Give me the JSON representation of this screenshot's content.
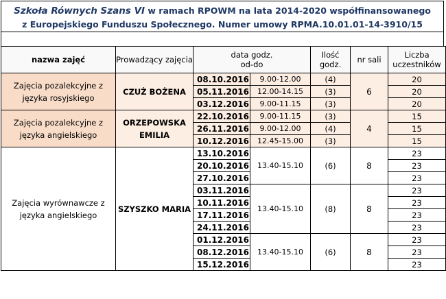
{
  "header": {
    "line1_italic": "Szkoła Równych Szans VI",
    "line1_rest": " w ramach RPOWM na lata 2014-2020 współfinansowanego",
    "line2": "z Europejskiego Funduszu Społecznego. Numer umowy RPMA.10.01.01-14-3910/15"
  },
  "columns": {
    "name": "nazwa zajęć",
    "leader": "Prowadzący zajęcia",
    "date": "data godz. od-do",
    "hours": "Ilość godz.",
    "room": "nr sali",
    "participants": "Liczba uczestników"
  },
  "groups": [
    {
      "name": "Zajęcia pozalekcyjne z języka rosyjskiego",
      "leader": "CZUŻ BOŻENA",
      "room": "6",
      "sessions": [
        {
          "date": "08.10.2016",
          "time": "9.00-12.00",
          "hours": "(4)",
          "participants": "20"
        },
        {
          "date": "05.11.2016",
          "time": "12.00-14.15",
          "hours": "(3)",
          "participants": "20"
        },
        {
          "date": "03.12.2016",
          "time": "9.00-11.15",
          "hours": "(3)",
          "participants": "20"
        }
      ]
    },
    {
      "name": "Zajęcia pozalekcyjne z języka angielskiego",
      "leader": "ORZEPOWSKA EMILIA",
      "room": "4",
      "sessions": [
        {
          "date": "22.10.2016",
          "time": "9.00-11.15",
          "hours": "(3)",
          "participants": "15"
        },
        {
          "date": "26.11.2016",
          "time": "9.00-12.00",
          "hours": "(4)",
          "participants": "15"
        },
        {
          "date": "10.12.2016",
          "time": "12.45-15.00",
          "hours": "(3)",
          "participants": "15"
        }
      ]
    },
    {
      "name": "Zajęcia wyrównawcze z języka angielskiego",
      "leader": "SZYSZKO MARIA",
      "blocks": [
        {
          "dates": [
            "13.10.2016",
            "20.10.2016",
            "27.10.2016"
          ],
          "time": "13.40-15.10",
          "hours": "(6)",
          "room": "8",
          "participants": [
            "23",
            "23",
            "23"
          ]
        },
        {
          "dates": [
            "03.11.2016",
            "10.11.2016",
            "17.11.2016",
            "24.11.2016"
          ],
          "time": "13.40-15.10",
          "hours": "(8)",
          "room": "8",
          "participants": [
            "23",
            "23",
            "23",
            "23"
          ]
        },
        {
          "dates": [
            "01.12.2016",
            "08.12.2016",
            "15.12.2016"
          ],
          "time": "13.40-15.10",
          "hours": "(6)",
          "room": "8",
          "participants": [
            "23",
            "23",
            "23"
          ]
        }
      ]
    }
  ]
}
